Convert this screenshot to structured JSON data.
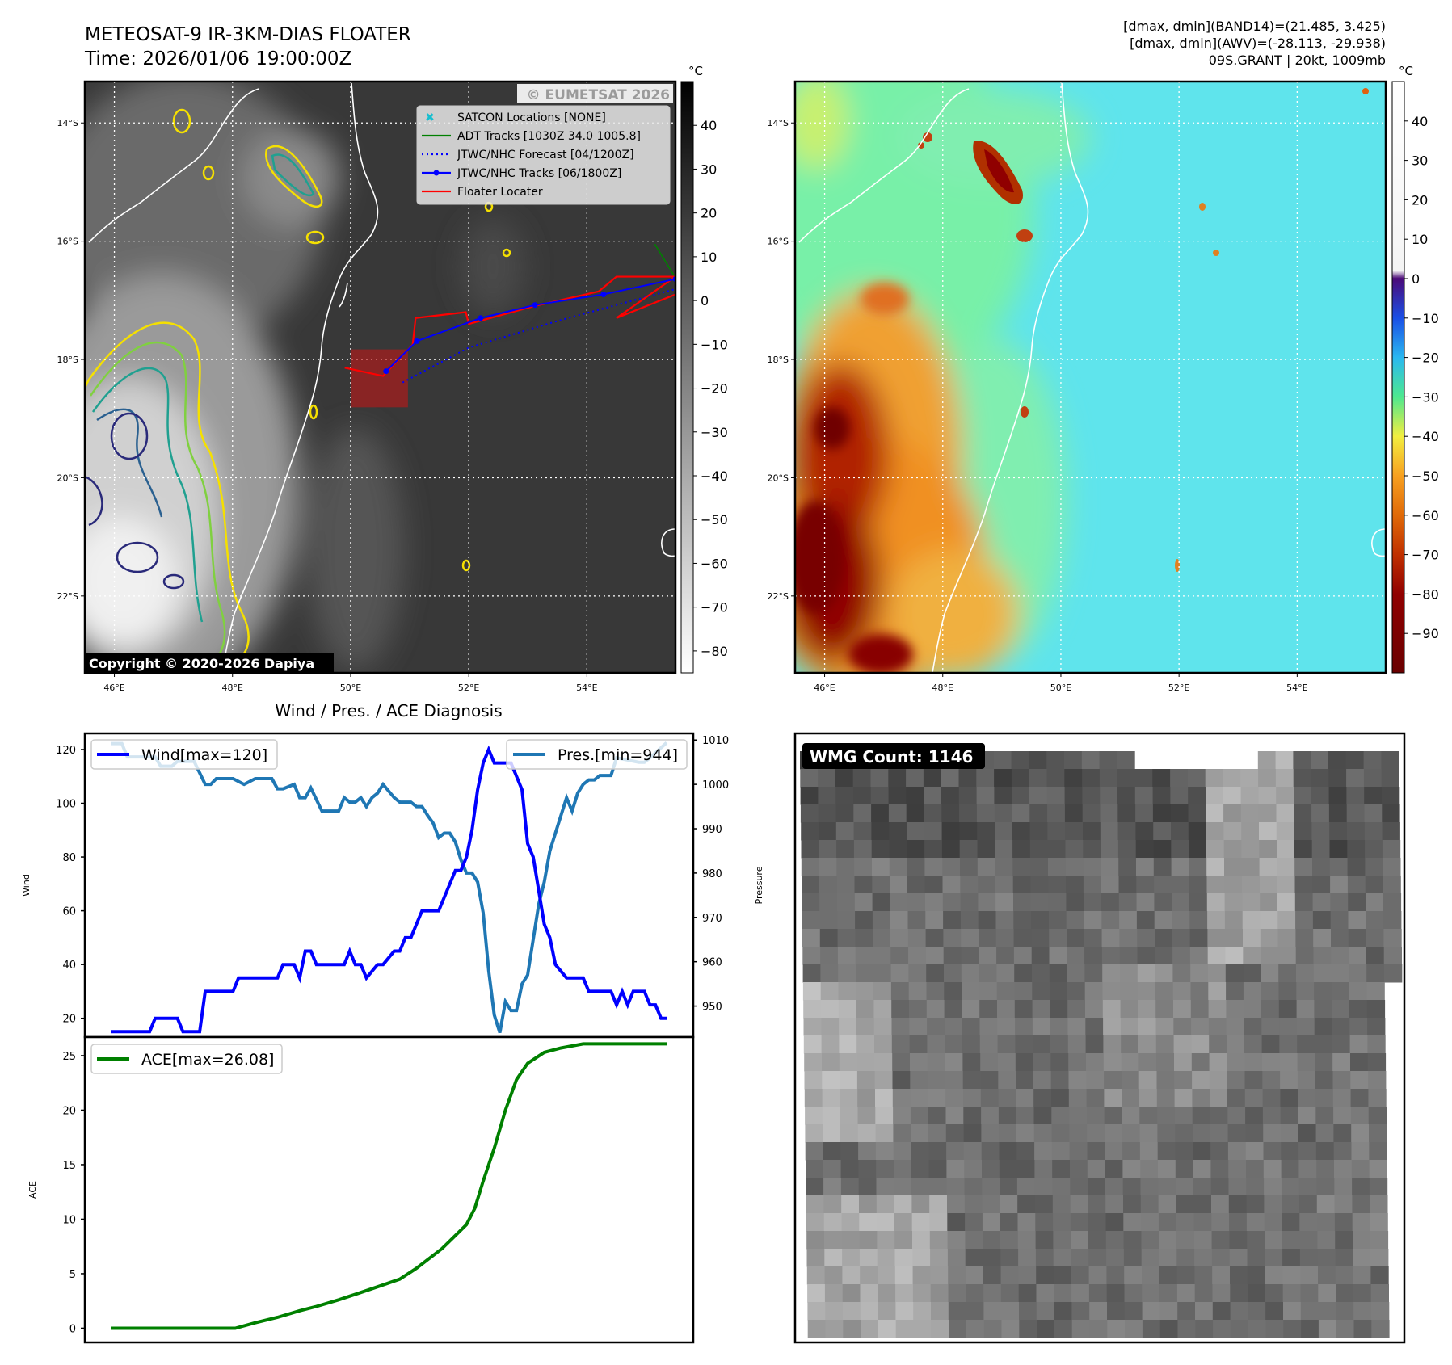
{
  "header": {
    "title": "METEOSAT-9 IR-3KM-DIAS FLOATER",
    "time": "Time: 2026/01/06 19:00:00Z",
    "info_line1": "[dmax, dmin](BAND14)=(21.485, 3.425)",
    "info_line2": "[dmax, dmin](AWV)=(-28.113, -29.938)",
    "info_line3": "09S.GRANT | 20kt, 1009mb"
  },
  "maps": {
    "lat_ticks": [
      "14°S",
      "16°S",
      "18°S",
      "20°S",
      "22°S"
    ],
    "lat_values": [
      -14,
      -16,
      -18,
      -20,
      -22
    ],
    "lon_ticks": [
      "46°E",
      "48°E",
      "50°E",
      "52°E",
      "54°E"
    ],
    "lon_values": [
      46,
      48,
      50,
      52,
      54
    ],
    "extent": {
      "lon": [
        45.5,
        55.5
      ],
      "lat": [
        -13.3,
        -23.3
      ]
    },
    "watermark": "© EUMETSAT 2026",
    "copyright": "Copyright © 2020-2026 Dapiya",
    "legend": [
      {
        "label": "SATCON Locations [NONE]",
        "color": "#17becf",
        "style": "x"
      },
      {
        "label": "ADT Tracks [1030Z 34.0 1005.8]",
        "color": "#008000",
        "style": "line"
      },
      {
        "label": "JTWC/NHC Forecast [04/1200Z]",
        "color": "#0000ff",
        "style": "dotted"
      },
      {
        "label": "JTWC/NHC Tracks [06/1800Z]",
        "color": "#0000ff",
        "style": "marker"
      },
      {
        "label": "Floater Locater",
        "color": "#ff0000",
        "style": "line"
      }
    ],
    "jtwc_track": [
      [
        50.6,
        -18.2
      ],
      [
        51.12,
        -17.69
      ],
      [
        52.2,
        -17.3
      ],
      [
        53.12,
        -17.08
      ],
      [
        54.28,
        -16.9
      ],
      [
        55.5,
        -16.64
      ]
    ],
    "jtwc_forecast": [
      [
        50.88,
        -18.39
      ],
      [
        52.0,
        -17.8
      ],
      [
        53.5,
        -17.35
      ],
      [
        55.5,
        -16.81
      ]
    ],
    "adt_track": [
      [
        55.15,
        -16.05
      ],
      [
        55.5,
        -16.62
      ]
    ],
    "floater_path": [
      [
        49.9,
        -18.14
      ],
      [
        50.55,
        -18.28
      ],
      [
        51.05,
        -17.75
      ],
      [
        51.1,
        -17.3
      ],
      [
        51.95,
        -17.2
      ],
      [
        52.0,
        -17.4
      ],
      [
        53.1,
        -17.1
      ],
      [
        54.2,
        -16.85
      ],
      [
        54.5,
        -16.6
      ],
      [
        55.2,
        -16.6
      ],
      [
        55.5,
        -16.6
      ],
      [
        54.5,
        -17.3
      ],
      [
        55.5,
        -16.9
      ]
    ],
    "floater_box": {
      "lon": [
        50.0,
        50.97
      ],
      "lat": [
        -17.83,
        -18.81
      ]
    },
    "ir_colorbar": {
      "unit": "°C",
      "range": [
        50,
        -85
      ],
      "ticks": [
        "40",
        "30",
        "20",
        "10",
        "0",
        "−10",
        "−20",
        "−30",
        "−40",
        "−50",
        "−60",
        "−70",
        "−80"
      ],
      "tick_values": [
        40,
        30,
        20,
        10,
        0,
        -10,
        -20,
        -30,
        -40,
        -50,
        -60,
        -70,
        -80
      ]
    },
    "awv_colorbar": {
      "unit": "°C",
      "range": [
        50,
        -100
      ],
      "ticks": [
        "40",
        "30",
        "20",
        "10",
        "0",
        "−10",
        "−20",
        "−30",
        "−40",
        "−50",
        "−60",
        "−70",
        "−80",
        "−90"
      ],
      "tick_values": [
        40,
        30,
        20,
        10,
        0,
        -10,
        -20,
        -30,
        -40,
        -50,
        -60,
        -70,
        -80,
        -90
      ]
    }
  },
  "chart_data": [
    {
      "type": "line",
      "title": "Wind / Pres. / ACE Diagnosis",
      "ylabel": "Wind",
      "ylabel_right": "Pressure",
      "ylim": [
        13,
        126
      ],
      "ylim_right": [
        943,
        1011.5
      ],
      "yticks": [
        20,
        40,
        60,
        80,
        100,
        120
      ],
      "yticks_right": [
        950,
        960,
        970,
        980,
        990,
        1000,
        1010
      ],
      "series": [
        {
          "name": "Wind[max=120]",
          "color": "#0000ff",
          "x": [
            0,
            7,
            8,
            12,
            13,
            16,
            17,
            22,
            23,
            30,
            31,
            33,
            34,
            35,
            36,
            37,
            42,
            43,
            44,
            45,
            46,
            48,
            49,
            51,
            52,
            53,
            54,
            56,
            59,
            62,
            63,
            64,
            65,
            66,
            67,
            68,
            69,
            72,
            74,
            75,
            76,
            78,
            79,
            80,
            82,
            85,
            86,
            90,
            91,
            92,
            93,
            94,
            96,
            97,
            98,
            99,
            100
          ],
          "values": [
            15,
            15,
            20,
            20,
            15,
            15,
            30,
            30,
            35,
            35,
            40,
            40,
            35,
            45,
            45,
            40,
            40,
            45,
            40,
            40,
            35,
            40,
            40,
            45,
            45,
            50,
            50,
            60,
            60,
            75,
            75,
            80,
            90,
            105,
            115,
            120,
            115,
            115,
            105,
            85,
            80,
            55,
            50,
            40,
            35,
            35,
            30,
            30,
            25,
            30,
            25,
            30,
            30,
            25,
            25,
            20,
            20
          ]
        },
        {
          "name": "Pres.[min=944]",
          "color": "#1f77b4",
          "x": [
            0,
            2,
            3,
            8,
            9,
            11,
            12,
            15,
            17,
            18,
            19,
            22,
            24,
            26,
            29,
            30,
            31,
            33,
            34,
            35,
            36,
            38,
            41,
            42,
            43,
            44,
            45,
            46,
            47,
            48,
            49,
            51,
            52,
            54,
            55,
            56,
            57,
            58,
            59,
            60,
            61,
            62,
            63,
            64,
            65,
            66,
            67,
            68,
            69,
            70,
            71,
            72,
            73,
            74,
            75,
            76,
            77,
            78,
            79,
            80,
            81,
            82,
            83,
            84,
            85,
            86,
            87,
            88,
            90,
            91,
            95,
            96,
            97,
            100
          ],
          "values": [
            1009.2,
            1009.2,
            1006.2,
            1006.2,
            1004.1,
            1004.1,
            1005.2,
            1005.2,
            1000,
            1000,
            1001.3,
            1001.3,
            1000,
            1001.3,
            1001.3,
            999,
            999,
            1000,
            997,
            997,
            999.2,
            994,
            994,
            997,
            996,
            996,
            997,
            995,
            997,
            998,
            1000,
            997,
            996,
            996,
            995,
            995,
            993,
            991.3,
            988,
            989,
            989,
            987,
            983,
            980,
            980,
            978,
            971,
            958,
            948,
            944,
            951,
            949,
            949,
            955,
            957,
            965,
            973,
            978,
            985,
            989,
            993,
            997,
            994,
            998,
            1000,
            1001,
            1001,
            1002,
            1002,
            1006,
            1005,
            1005,
            1006,
            1009.4
          ]
        }
      ]
    },
    {
      "type": "line",
      "ylabel": "ACE",
      "ylim": [
        -1.3,
        26.7
      ],
      "yticks": [
        0,
        5,
        10,
        15,
        20,
        25
      ],
      "series": [
        {
          "name": "ACE[max=26.08]",
          "color": "#008000",
          "x": [
            0,
            22.4,
            26,
            30,
            34,
            37,
            41,
            44.5,
            48,
            52,
            55,
            59.6,
            62,
            64,
            65.5,
            67,
            69,
            71,
            73,
            75,
            78,
            81,
            85,
            100
          ],
          "values": [
            0,
            0,
            0.5,
            1,
            1.6,
            2,
            2.6,
            3.2,
            3.8,
            4.5,
            5.5,
            7.3,
            8.5,
            9.5,
            11,
            13.5,
            16.5,
            20,
            22.8,
            24.3,
            25.3,
            25.7,
            26.08,
            26.08
          ]
        }
      ]
    }
  ],
  "wmg": {
    "label": "WMG Count: 1146"
  }
}
